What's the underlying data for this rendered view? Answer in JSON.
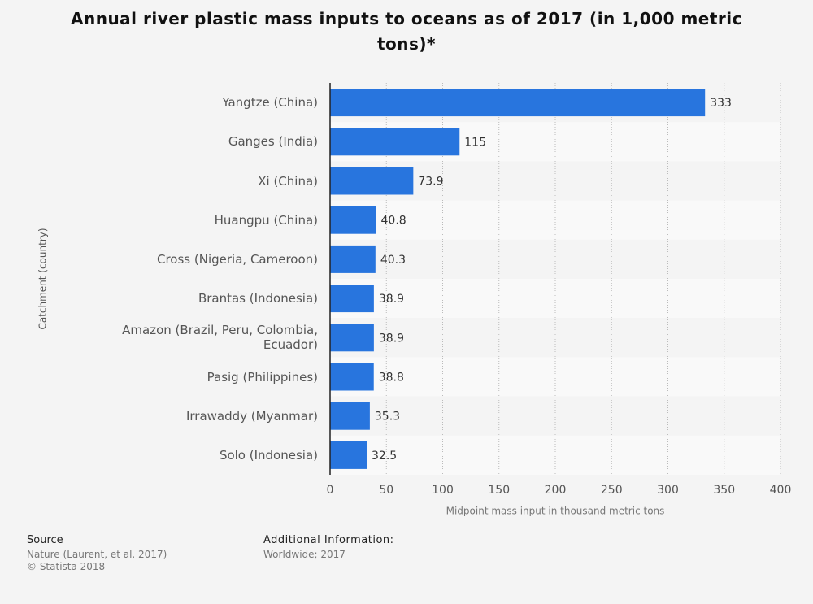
{
  "chart_data": {
    "type": "bar",
    "orientation": "horizontal",
    "title": "Annual river plastic mass inputs to oceans as of 2017 (in 1,000 metric tons)*",
    "x_label": "Midpoint mass input in thousand metric tons",
    "y_label": "Catchment (country)",
    "categories": [
      "Yangtze (China)",
      "Ganges (India)",
      "Xi (China)",
      "Huangpu (China)",
      "Cross (Nigeria, Cameroon)",
      "Brantas (Indonesia)",
      "Amazon (Brazil, Peru, Colombia, Ecuador)",
      "Pasig (Philippines)",
      "Irrawaddy (Myanmar)",
      "Solo (Indonesia)"
    ],
    "values": [
      333,
      115,
      73.9,
      40.8,
      40.3,
      38.9,
      38.9,
      38.8,
      35.3,
      32.5
    ],
    "color": "#2875de",
    "xlim": [
      0,
      400
    ],
    "xticks": [
      0,
      50,
      100,
      150,
      200,
      250,
      300,
      350,
      400
    ],
    "grid": true
  },
  "footer": {
    "source_title": "Source",
    "source_lines": [
      "Nature (Laurent, et al. 2017)",
      "© Statista 2018"
    ],
    "info_title": "Additional Information:",
    "info_lines": [
      "Worldwide; 2017"
    ]
  }
}
